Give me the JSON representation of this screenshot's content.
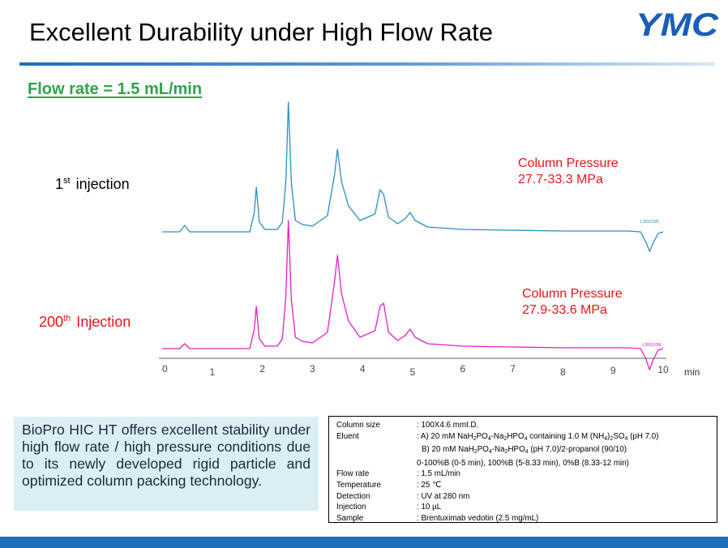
{
  "header": {
    "title": "Excellent Durability under High Flow Rate",
    "logo_text": "YMC",
    "logo_color": "#1a5fb4"
  },
  "flow_label": "Flow rate = 1.5 mL/min",
  "injections": {
    "first": {
      "ordinal": "1",
      "suffix": "st",
      "label": "injection"
    },
    "second": {
      "ordinal": "200",
      "suffix": "th",
      "label": "Injection"
    }
  },
  "pressures": {
    "first": {
      "label": "Column Pressure",
      "value": "27.7-33.3 MPa"
    },
    "second": {
      "label": "Column Pressure",
      "value": "27.9-33.6 MPa"
    }
  },
  "chart_data": {
    "type": "line",
    "xlabel": "min",
    "x_ticks": [
      "0",
      "1",
      "2",
      "3",
      "4",
      "5",
      "6",
      "7",
      "8",
      "9",
      "10"
    ],
    "xlim": [
      0,
      10
    ],
    "series": [
      {
        "color": "#2a8ec4",
        "tag": "L300110B",
        "points": [
          [
            0,
            0
          ],
          [
            0.35,
            0
          ],
          [
            0.45,
            -8
          ],
          [
            0.55,
            0
          ],
          [
            1.75,
            0
          ],
          [
            1.84,
            -24
          ],
          [
            1.88,
            -55
          ],
          [
            1.94,
            -12
          ],
          [
            2.05,
            -3
          ],
          [
            2.3,
            -3
          ],
          [
            2.4,
            -12
          ],
          [
            2.47,
            -62
          ],
          [
            2.52,
            -160
          ],
          [
            2.58,
            -60
          ],
          [
            2.66,
            -14
          ],
          [
            2.8,
            -9
          ],
          [
            3.0,
            -7
          ],
          [
            3.3,
            -20
          ],
          [
            3.44,
            -70
          ],
          [
            3.5,
            -102
          ],
          [
            3.58,
            -62
          ],
          [
            3.72,
            -32
          ],
          [
            3.95,
            -14
          ],
          [
            4.25,
            -22
          ],
          [
            4.35,
            -52
          ],
          [
            4.42,
            -46
          ],
          [
            4.52,
            -18
          ],
          [
            4.7,
            -10
          ],
          [
            4.85,
            -16
          ],
          [
            4.95,
            -24
          ],
          [
            5.05,
            -14
          ],
          [
            5.3,
            -6
          ],
          [
            6.0,
            -3
          ],
          [
            7.0,
            -2
          ],
          [
            8.0,
            -1
          ],
          [
            9.3,
            -1
          ],
          [
            9.55,
            0
          ],
          [
            9.65,
            12
          ],
          [
            9.73,
            24
          ],
          [
            9.8,
            14
          ],
          [
            9.9,
            2
          ],
          [
            10,
            0
          ]
        ]
      },
      {
        "color": "#e020c8",
        "tag": "L300110M",
        "points": [
          [
            0,
            0
          ],
          [
            0.35,
            0
          ],
          [
            0.45,
            -6
          ],
          [
            0.55,
            0
          ],
          [
            1.75,
            0
          ],
          [
            1.84,
            -24
          ],
          [
            1.88,
            -52
          ],
          [
            1.94,
            -12
          ],
          [
            2.05,
            -3
          ],
          [
            2.3,
            -3
          ],
          [
            2.4,
            -12
          ],
          [
            2.47,
            -65
          ],
          [
            2.52,
            -158
          ],
          [
            2.58,
            -60
          ],
          [
            2.66,
            -14
          ],
          [
            2.8,
            -9
          ],
          [
            3.0,
            -7
          ],
          [
            3.3,
            -20
          ],
          [
            3.44,
            -82
          ],
          [
            3.5,
            -115
          ],
          [
            3.58,
            -68
          ],
          [
            3.72,
            -34
          ],
          [
            3.95,
            -14
          ],
          [
            4.25,
            -22
          ],
          [
            4.35,
            -52
          ],
          [
            4.42,
            -56
          ],
          [
            4.52,
            -20
          ],
          [
            4.7,
            -10
          ],
          [
            4.85,
            -16
          ],
          [
            4.95,
            -24
          ],
          [
            5.05,
            -14
          ],
          [
            5.3,
            -6
          ],
          [
            6.0,
            -3
          ],
          [
            7.0,
            -2
          ],
          [
            8.0,
            -1
          ],
          [
            9.3,
            -1
          ],
          [
            9.55,
            0
          ],
          [
            9.65,
            12
          ],
          [
            9.73,
            26
          ],
          [
            9.8,
            14
          ],
          [
            9.9,
            2
          ],
          [
            10,
            0
          ]
        ]
      }
    ]
  },
  "description": "BioPro HIC HT offers excellent stability under high flow rate / high pressure conditions due to its newly developed rigid particle and optimized column packing technology.",
  "conditions": {
    "column_size": {
      "label": "Column size",
      "value": ": 100X4.6 mmI.D."
    },
    "eluent_label": "Eluent",
    "eluent_a": {
      "p1": ": A) 20 mM NaH",
      "s1": "2",
      "p2": "PO",
      "s2": "4",
      "p3": "-Na",
      "s3": "2",
      "p4": "HPO",
      "s4": "4",
      "p5": " containing 1.0 M (NH",
      "s5": "4",
      "p6": ")",
      "s6": "2",
      "p7": "SO",
      "s7": "4",
      "p8": " (pH 7.0)"
    },
    "eluent_b": {
      "p1": "B) 20 mM NaH",
      "s1": "2",
      "p2": "PO",
      "s2": "4",
      "p3": "-Na",
      "s3": "2",
      "p4": "HPO",
      "s4": "4",
      "p5": " (pH 7.0)/2-propanol (90/10)"
    },
    "gradient": "0-100%B (0-5 min), 100%B (5-8.33 min), 0%B (8.33-12 min)",
    "flow_rate": {
      "label": "Flow rate",
      "value": ": 1.5 mL/min"
    },
    "temperature": {
      "label": "Temperature",
      "value": ": 25 ℃"
    },
    "detection": {
      "label": "Detection",
      "value": ": UV at 280 nm"
    },
    "injection": {
      "label": "Injection",
      "value": ": 10 µL"
    },
    "sample": {
      "label": "Sample",
      "value": ": Brentuximab vedotin (2.5 mg/mL)"
    }
  }
}
